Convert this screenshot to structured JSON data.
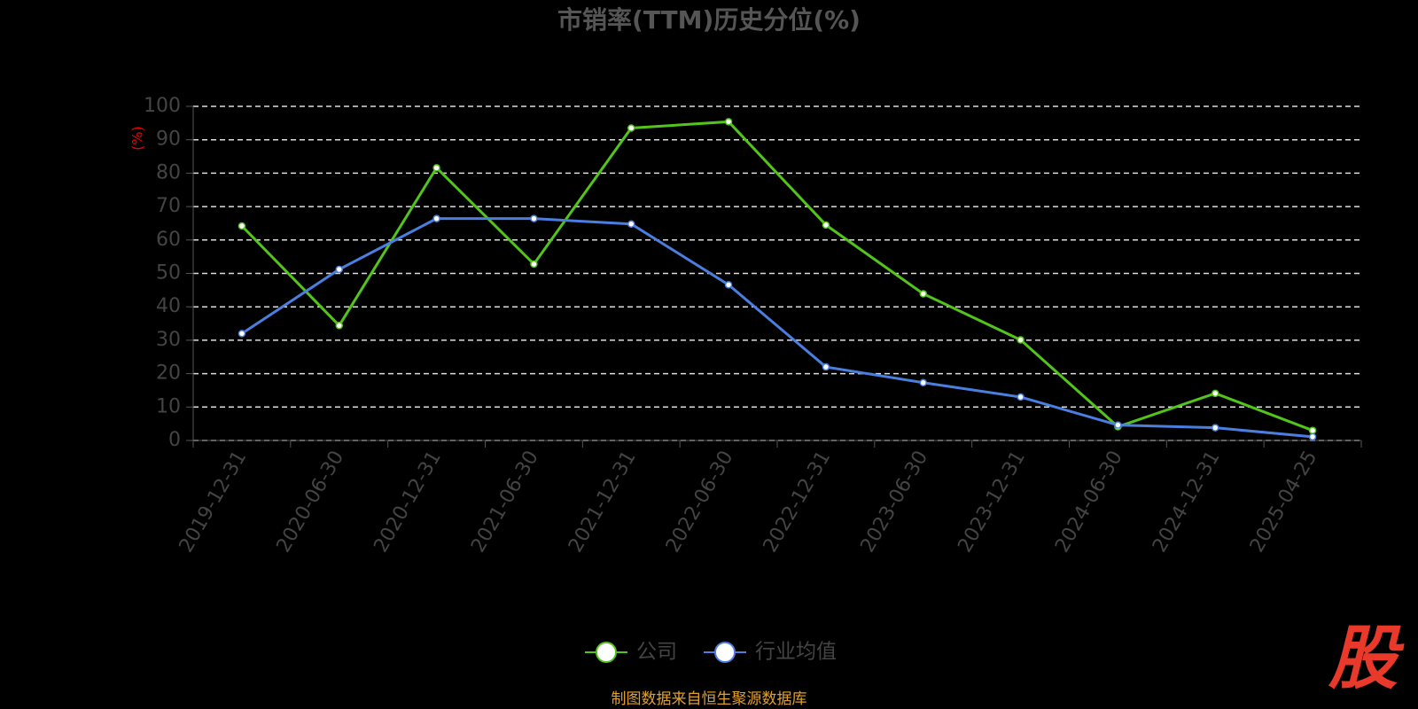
{
  "chart_data": {
    "type": "line",
    "title": "市销率(TTM)历史分位(%)",
    "y_label": "(%)",
    "categories": [
      "2019-12-31",
      "2020-06-30",
      "2020-12-31",
      "2021-06-30",
      "2021-12-31",
      "2022-06-30",
      "2022-12-31",
      "2023-06-30",
      "2023-12-31",
      "2024-06-30",
      "2024-12-31",
      "2025-04-25"
    ],
    "series": [
      {
        "name": "公司",
        "color": "#52c41a",
        "values": [
          64.2,
          34.4,
          81.6,
          52.8,
          93.5,
          95.4,
          64.5,
          43.9,
          30.1,
          4.1,
          14.1,
          3.0
        ]
      },
      {
        "name": "行业均值",
        "color": "#4a7fe0",
        "values": [
          32.0,
          51.2,
          66.4,
          66.4,
          64.8,
          46.6,
          22.0,
          17.3,
          13.0,
          4.6,
          3.8,
          1.1
        ]
      }
    ],
    "ylim": [
      0,
      100
    ],
    "yticks": [
      0,
      10,
      20,
      30,
      40,
      50,
      60,
      70,
      80,
      90,
      100
    ],
    "grid": true,
    "source": "制图数据来自恒生聚源数据库",
    "logo": "股"
  }
}
